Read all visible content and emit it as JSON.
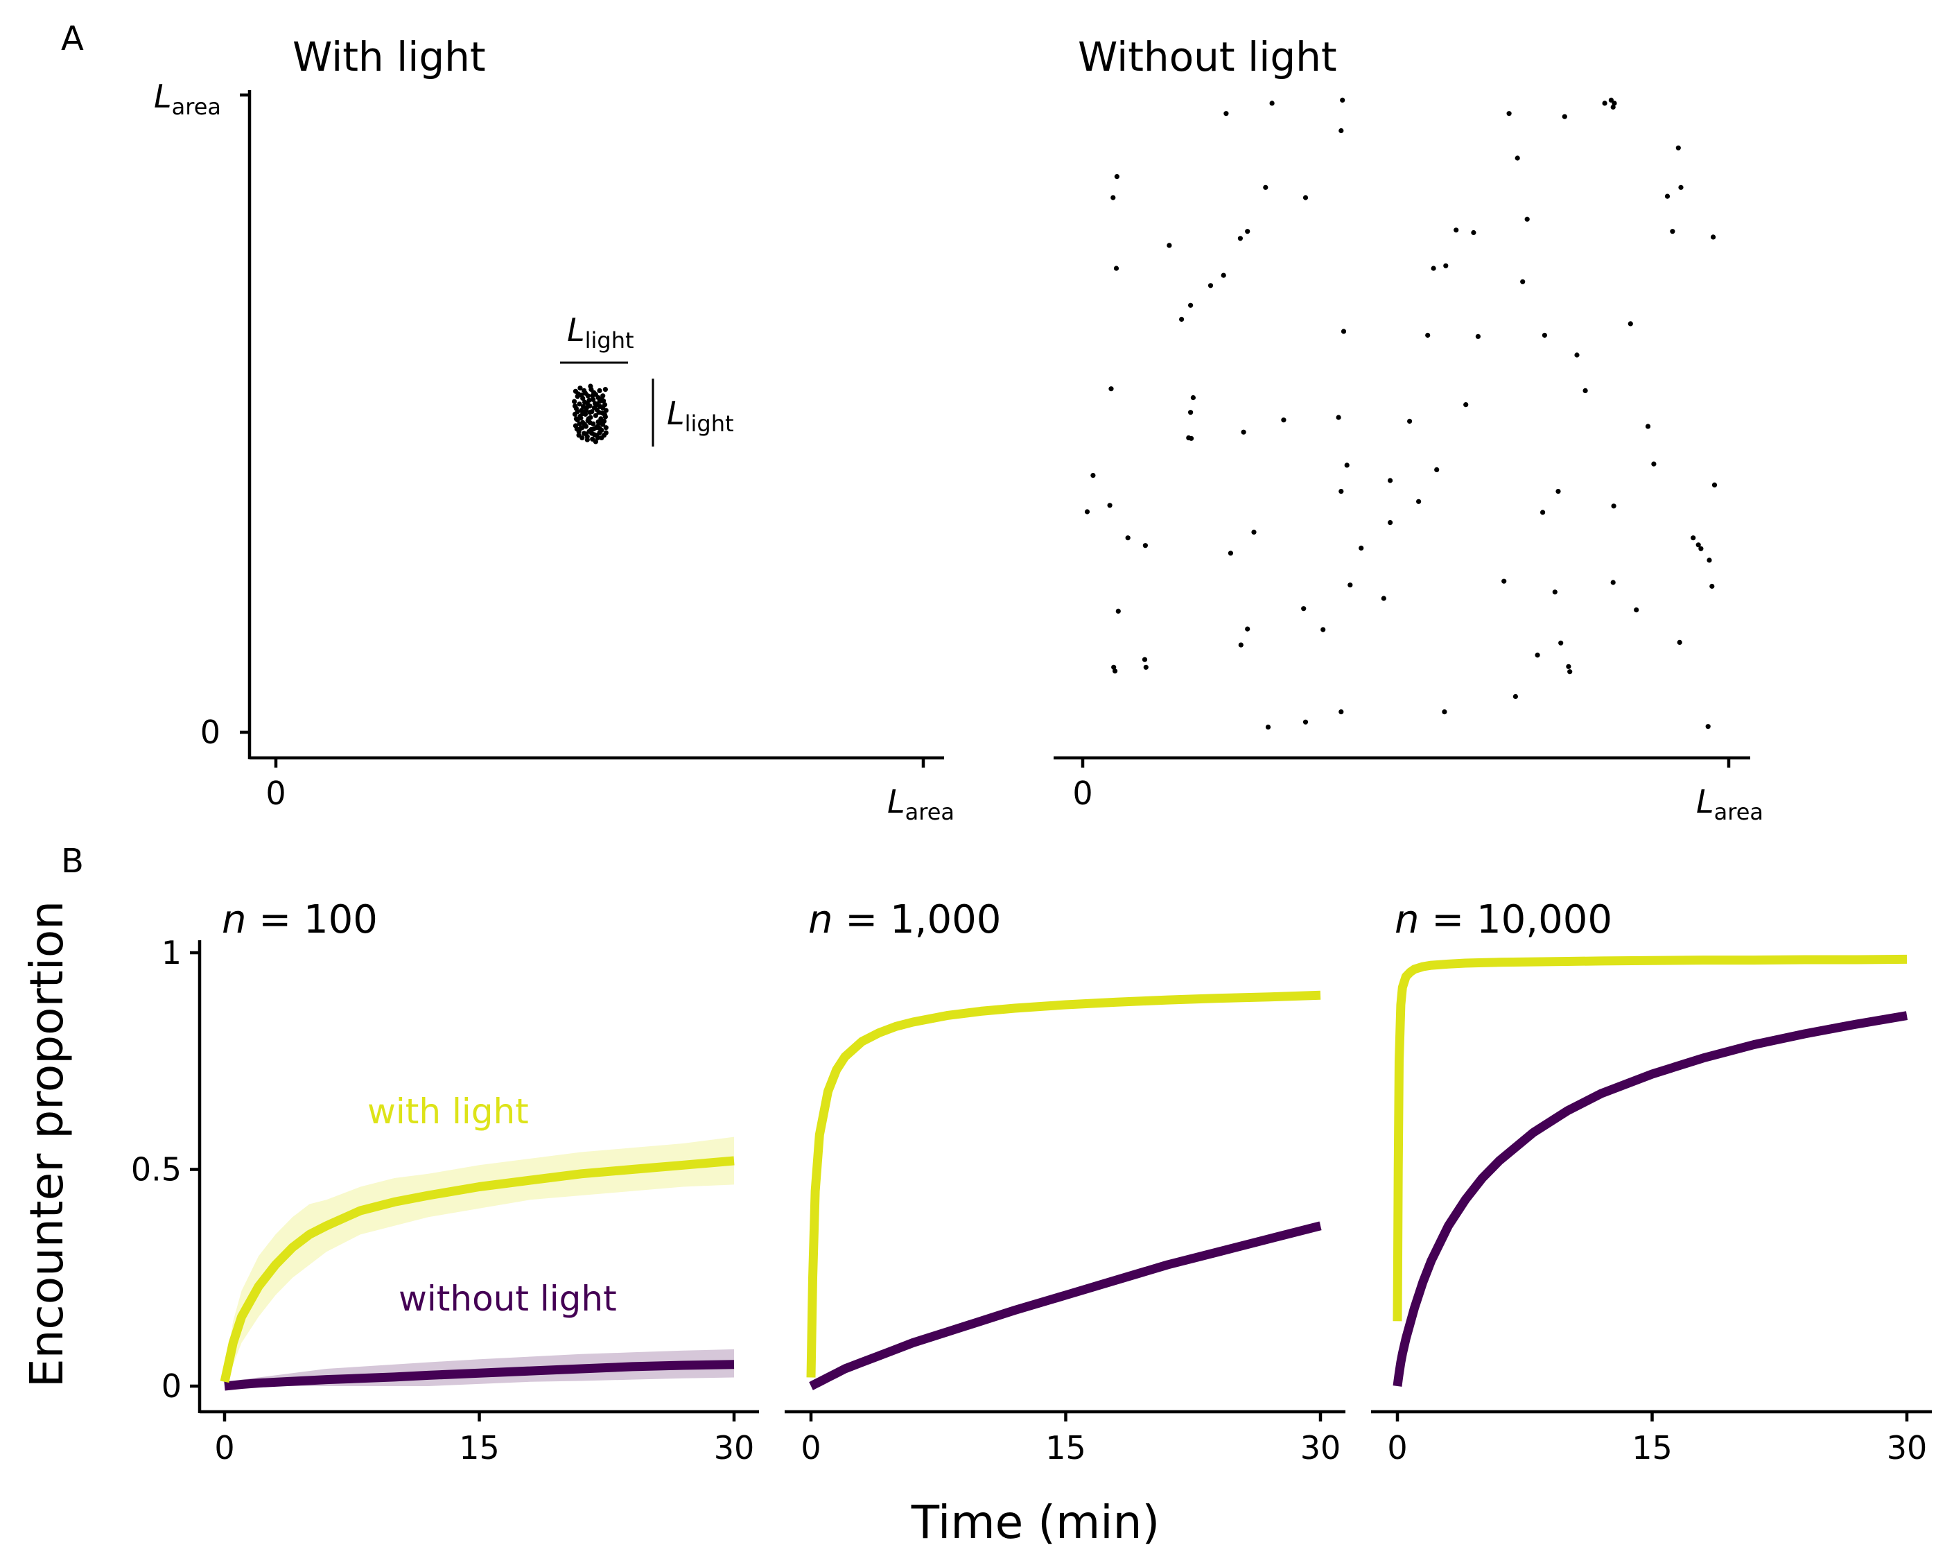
{
  "colors": {
    "with_light": "#dde318",
    "without_light": "#440154",
    "axis": "#000000"
  },
  "panel_a": {
    "tag": "A",
    "left_title": "With light",
    "right_title": "Without light",
    "tick_zero": "0",
    "tick_l": "L",
    "tick_sub": "area",
    "light_l": "L",
    "light_sub": "light"
  },
  "panel_b": {
    "tag": "B",
    "ylabel": "Encounter proportion",
    "xlabel": "Time (min)",
    "n_prefix": "n",
    "series_labels": {
      "with_light": "with light",
      "without_light": "without light"
    }
  },
  "chart_data": [
    {
      "type": "scatter",
      "title": "With light",
      "xlabel": "",
      "ylabel": "",
      "xticks": [
        "0",
        "Larea"
      ],
      "yticks": [
        "0",
        "Larea"
      ],
      "xlim": [
        0,
        1
      ],
      "ylim": [
        0,
        1
      ],
      "grid": false,
      "points_description": "about 100 points clustered in a square patch of side Llight",
      "points": [
        [
          0.463,
          0.535
        ],
        [
          0.47,
          0.54
        ],
        [
          0.478,
          0.532
        ],
        [
          0.487,
          0.538
        ],
        [
          0.494,
          0.53
        ],
        [
          0.5,
          0.536
        ],
        [
          0.505,
          0.528
        ],
        [
          0.509,
          0.538
        ],
        [
          0.466,
          0.527
        ],
        [
          0.474,
          0.524
        ],
        [
          0.482,
          0.528
        ],
        [
          0.49,
          0.522
        ],
        [
          0.498,
          0.525
        ],
        [
          0.506,
          0.52
        ],
        [
          0.461,
          0.519
        ],
        [
          0.469,
          0.515
        ],
        [
          0.477,
          0.518
        ],
        [
          0.485,
          0.512
        ],
        [
          0.493,
          0.516
        ],
        [
          0.501,
          0.511
        ],
        [
          0.508,
          0.514
        ],
        [
          0.464,
          0.508
        ],
        [
          0.472,
          0.505
        ],
        [
          0.48,
          0.509
        ],
        [
          0.488,
          0.503
        ],
        [
          0.496,
          0.506
        ],
        [
          0.504,
          0.501
        ],
        [
          0.51,
          0.505
        ],
        [
          0.462,
          0.499
        ],
        [
          0.47,
          0.496
        ],
        [
          0.478,
          0.499
        ],
        [
          0.486,
          0.494
        ],
        [
          0.494,
          0.497
        ],
        [
          0.502,
          0.492
        ],
        [
          0.509,
          0.495
        ],
        [
          0.466,
          0.49
        ],
        [
          0.474,
          0.486
        ],
        [
          0.482,
          0.489
        ],
        [
          0.49,
          0.484
        ],
        [
          0.498,
          0.487
        ],
        [
          0.505,
          0.483
        ],
        [
          0.463,
          0.481
        ],
        [
          0.471,
          0.477
        ],
        [
          0.479,
          0.48
        ],
        [
          0.487,
          0.475
        ],
        [
          0.495,
          0.478
        ],
        [
          0.503,
          0.474
        ],
        [
          0.51,
          0.478
        ],
        [
          0.468,
          0.472
        ],
        [
          0.476,
          0.469
        ],
        [
          0.484,
          0.472
        ],
        [
          0.492,
          0.467
        ],
        [
          0.5,
          0.47
        ],
        [
          0.507,
          0.466
        ],
        [
          0.473,
          0.462
        ],
        [
          0.481,
          0.464
        ],
        [
          0.489,
          0.46
        ],
        [
          0.497,
          0.462
        ],
        [
          0.467,
          0.531
        ],
        [
          0.491,
          0.533
        ],
        [
          0.503,
          0.523
        ],
        [
          0.475,
          0.511
        ],
        [
          0.499,
          0.502
        ],
        [
          0.483,
          0.492
        ],
        [
          0.507,
          0.488
        ],
        [
          0.469,
          0.484
        ],
        [
          0.491,
          0.476
        ],
        [
          0.479,
          0.468
        ],
        [
          0.503,
          0.462
        ],
        [
          0.486,
          0.543
        ],
        [
          0.476,
          0.536
        ],
        [
          0.496,
          0.514
        ],
        [
          0.462,
          0.512
        ],
        [
          0.485,
          0.502
        ],
        [
          0.471,
          0.493
        ],
        [
          0.497,
          0.48
        ],
        [
          0.465,
          0.476
        ],
        [
          0.488,
          0.469
        ],
        [
          0.51,
          0.47
        ],
        [
          0.481,
          0.459
        ],
        [
          0.494,
          0.456
        ],
        [
          0.472,
          0.529
        ],
        [
          0.5,
          0.519
        ],
        [
          0.466,
          0.503
        ],
        [
          0.508,
          0.498
        ],
        [
          0.477,
          0.483
        ],
        [
          0.484,
          0.521
        ],
        [
          0.492,
          0.509
        ],
        [
          0.474,
          0.5
        ],
        [
          0.502,
          0.485
        ],
        [
          0.468,
          0.466
        ],
        [
          0.496,
          0.466
        ],
        [
          0.489,
          0.528
        ],
        [
          0.481,
          0.516
        ],
        [
          0.505,
          0.509
        ],
        [
          0.464,
          0.492
        ],
        [
          0.479,
          0.505
        ],
        [
          0.5,
          0.477
        ],
        [
          0.485,
          0.486
        ],
        [
          0.473,
          0.478
        ]
      ]
    },
    {
      "type": "scatter",
      "title": "Without light",
      "xlabel": "",
      "ylabel": "",
      "xticks": [
        "0",
        "Larea"
      ],
      "yticks": [],
      "xlim": [
        0,
        1
      ],
      "ylim": [
        0,
        1
      ],
      "grid": false,
      "points": [
        [
          0.222,
          0.971
        ],
        [
          0.293,
          0.987
        ],
        [
          0.402,
          0.992
        ],
        [
          0.66,
          0.971
        ],
        [
          0.746,
          0.966
        ],
        [
          0.808,
          0.987
        ],
        [
          0.818,
          0.992
        ],
        [
          0.823,
          0.987
        ],
        [
          0.821,
          0.981
        ],
        [
          0.4,
          0.944
        ],
        [
          0.673,
          0.901
        ],
        [
          0.922,
          0.917
        ],
        [
          0.053,
          0.872
        ],
        [
          0.047,
          0.839
        ],
        [
          0.283,
          0.855
        ],
        [
          0.345,
          0.839
        ],
        [
          0.926,
          0.855
        ],
        [
          0.688,
          0.805
        ],
        [
          0.905,
          0.841
        ],
        [
          0.913,
          0.786
        ],
        [
          0.976,
          0.777
        ],
        [
          0.255,
          0.786
        ],
        [
          0.244,
          0.775
        ],
        [
          0.134,
          0.764
        ],
        [
          0.578,
          0.788
        ],
        [
          0.605,
          0.784
        ],
        [
          0.052,
          0.728
        ],
        [
          0.562,
          0.732
        ],
        [
          0.543,
          0.728
        ],
        [
          0.218,
          0.717
        ],
        [
          0.198,
          0.701
        ],
        [
          0.681,
          0.707
        ],
        [
          0.167,
          0.67
        ],
        [
          0.153,
          0.648
        ],
        [
          0.404,
          0.629
        ],
        [
          0.534,
          0.623
        ],
        [
          0.612,
          0.621
        ],
        [
          0.715,
          0.623
        ],
        [
          0.848,
          0.641
        ],
        [
          0.765,
          0.592
        ],
        [
          0.778,
          0.536
        ],
        [
          0.044,
          0.539
        ],
        [
          0.171,
          0.525
        ],
        [
          0.167,
          0.502
        ],
        [
          0.593,
          0.514
        ],
        [
          0.168,
          0.461
        ],
        [
          0.164,
          0.462
        ],
        [
          0.249,
          0.471
        ],
        [
          0.311,
          0.49
        ],
        [
          0.396,
          0.494
        ],
        [
          0.506,
          0.488
        ],
        [
          0.875,
          0.48
        ],
        [
          0.884,
          0.421
        ],
        [
          0.016,
          0.403
        ],
        [
          0.409,
          0.419
        ],
        [
          0.476,
          0.395
        ],
        [
          0.548,
          0.412
        ],
        [
          0.978,
          0.388
        ],
        [
          0.007,
          0.346
        ],
        [
          0.042,
          0.356
        ],
        [
          0.4,
          0.378
        ],
        [
          0.52,
          0.362
        ],
        [
          0.736,
          0.378
        ],
        [
          0.712,
          0.345
        ],
        [
          0.822,
          0.355
        ],
        [
          0.07,
          0.305
        ],
        [
          0.097,
          0.293
        ],
        [
          0.229,
          0.281
        ],
        [
          0.265,
          0.314
        ],
        [
          0.431,
          0.289
        ],
        [
          0.476,
          0.329
        ],
        [
          0.945,
          0.305
        ],
        [
          0.953,
          0.294
        ],
        [
          0.957,
          0.288
        ],
        [
          0.97,
          0.27
        ],
        [
          0.414,
          0.231
        ],
        [
          0.652,
          0.237
        ],
        [
          0.731,
          0.22
        ],
        [
          0.821,
          0.235
        ],
        [
          0.974,
          0.229
        ],
        [
          0.055,
          0.19
        ],
        [
          0.342,
          0.194
        ],
        [
          0.466,
          0.21
        ],
        [
          0.255,
          0.162
        ],
        [
          0.245,
          0.137
        ],
        [
          0.372,
          0.161
        ],
        [
          0.74,
          0.14
        ],
        [
          0.857,
          0.192
        ],
        [
          0.924,
          0.141
        ],
        [
          0.048,
          0.102
        ],
        [
          0.05,
          0.096
        ],
        [
          0.096,
          0.114
        ],
        [
          0.098,
          0.102
        ],
        [
          0.704,
          0.121
        ],
        [
          0.752,
          0.103
        ],
        [
          0.754,
          0.095
        ],
        [
          0.287,
          0.008
        ],
        [
          0.345,
          0.016
        ],
        [
          0.4,
          0.032
        ],
        [
          0.56,
          0.032
        ],
        [
          0.67,
          0.056
        ],
        [
          0.968,
          0.009
        ]
      ]
    },
    {
      "type": "line",
      "title": "n = 100",
      "xlabel": "Time (min)",
      "ylabel": "Encounter proportion",
      "xlim": [
        0,
        30
      ],
      "ylim": [
        0,
        1
      ],
      "xticks": [
        "0",
        "15",
        "30"
      ],
      "yticks": [
        "0",
        "0.5",
        "1"
      ],
      "grid": false,
      "x": [
        0,
        0.5,
        1,
        2,
        3,
        4,
        5,
        6,
        8,
        10,
        12,
        15,
        18,
        21,
        24,
        27,
        30
      ],
      "series": [
        {
          "name": "with light",
          "values": [
            0.01,
            0.1,
            0.16,
            0.23,
            0.28,
            0.32,
            0.35,
            0.37,
            0.405,
            0.425,
            0.44,
            0.46,
            0.475,
            0.49,
            0.5,
            0.51,
            0.52
          ],
          "band_low": [
            0.0,
            0.05,
            0.1,
            0.16,
            0.21,
            0.25,
            0.28,
            0.31,
            0.35,
            0.37,
            0.39,
            0.41,
            0.43,
            0.44,
            0.45,
            0.46,
            0.465
          ],
          "band_high": [
            0.03,
            0.15,
            0.22,
            0.3,
            0.35,
            0.39,
            0.42,
            0.43,
            0.46,
            0.48,
            0.49,
            0.51,
            0.525,
            0.54,
            0.55,
            0.56,
            0.575
          ]
        },
        {
          "name": "without light",
          "values": [
            0.0,
            0.002,
            0.004,
            0.007,
            0.009,
            0.011,
            0.013,
            0.015,
            0.018,
            0.021,
            0.025,
            0.03,
            0.035,
            0.04,
            0.045,
            0.048,
            0.05
          ],
          "band_low": [
            0.0,
            0.0,
            0.0,
            0.0,
            0.0,
            0.0,
            0.0,
            0.0,
            0.0,
            0.0,
            0.0,
            0.005,
            0.01,
            0.012,
            0.015,
            0.018,
            0.02
          ],
          "band_high": [
            0.005,
            0.01,
            0.015,
            0.02,
            0.025,
            0.03,
            0.035,
            0.04,
            0.045,
            0.05,
            0.055,
            0.062,
            0.068,
            0.074,
            0.078,
            0.082,
            0.085
          ]
        }
      ]
    },
    {
      "type": "line",
      "title": "n = 1,000",
      "xlabel": "Time (min)",
      "ylabel": "",
      "xlim": [
        0,
        30
      ],
      "ylim": [
        0,
        1
      ],
      "xticks": [
        "0",
        "15",
        "30"
      ],
      "yticks": [],
      "grid": false,
      "x": [
        0,
        0.1,
        0.25,
        0.5,
        1,
        1.5,
        2,
        3,
        4,
        5,
        6,
        8,
        10,
        12,
        15,
        18,
        21,
        24,
        27,
        30
      ],
      "series": [
        {
          "name": "with light",
          "values": [
            0.02,
            0.25,
            0.45,
            0.58,
            0.68,
            0.73,
            0.76,
            0.795,
            0.815,
            0.83,
            0.84,
            0.855,
            0.865,
            0.872,
            0.88,
            0.886,
            0.891,
            0.895,
            0.898,
            0.902
          ]
        },
        {
          "name": "without light",
          "values": [
            0.0,
            0.002,
            0.005,
            0.01,
            0.02,
            0.03,
            0.04,
            0.055,
            0.07,
            0.085,
            0.1,
            0.125,
            0.15,
            0.175,
            0.21,
            0.245,
            0.28,
            0.31,
            0.34,
            0.37
          ],
          "band_low": [
            0.0,
            0.0,
            0.0,
            0.005,
            0.015,
            0.025,
            0.035,
            0.05,
            0.065,
            0.08,
            0.095,
            0.12,
            0.145,
            0.168,
            0.203,
            0.237,
            0.272,
            0.302,
            0.331,
            0.36
          ],
          "band_high": [
            0.005,
            0.006,
            0.01,
            0.015,
            0.025,
            0.035,
            0.045,
            0.06,
            0.075,
            0.09,
            0.105,
            0.13,
            0.155,
            0.182,
            0.217,
            0.253,
            0.288,
            0.318,
            0.349,
            0.38
          ]
        }
      ]
    },
    {
      "type": "line",
      "title": "n = 10,000",
      "xlabel": "Time (min)",
      "ylabel": "",
      "xlim": [
        0,
        30
      ],
      "ylim": [
        0,
        1
      ],
      "xticks": [
        "0",
        "15",
        "30"
      ],
      "yticks": [],
      "grid": false,
      "x": [
        0,
        0.05,
        0.1,
        0.2,
        0.3,
        0.5,
        0.75,
        1,
        1.5,
        2,
        3,
        4,
        5,
        6,
        8,
        10,
        12,
        15,
        18,
        21,
        24,
        27,
        30
      ],
      "series": [
        {
          "name": "with light",
          "values": [
            0.15,
            0.5,
            0.75,
            0.88,
            0.92,
            0.945,
            0.955,
            0.962,
            0.968,
            0.971,
            0.974,
            0.976,
            0.977,
            0.978,
            0.979,
            0.98,
            0.981,
            0.982,
            0.983,
            0.983,
            0.984,
            0.984,
            0.985
          ]
        },
        {
          "name": "without light",
          "values": [
            0.0,
            0.015,
            0.03,
            0.055,
            0.075,
            0.11,
            0.145,
            0.18,
            0.24,
            0.29,
            0.37,
            0.43,
            0.48,
            0.52,
            0.585,
            0.635,
            0.675,
            0.72,
            0.757,
            0.788,
            0.813,
            0.835,
            0.855
          ]
        }
      ]
    }
  ]
}
